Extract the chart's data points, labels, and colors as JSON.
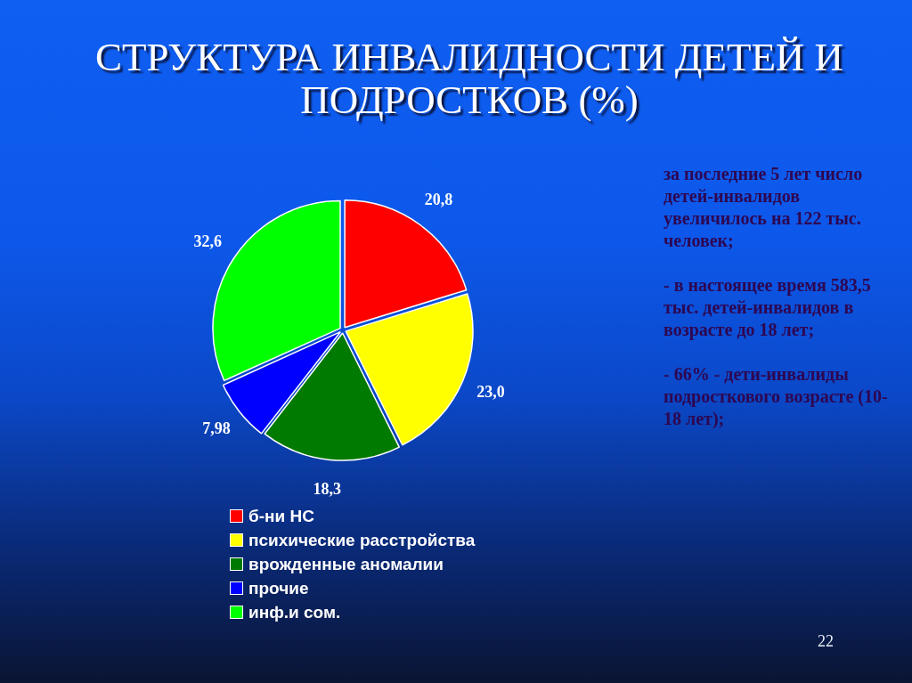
{
  "chart_data": {
    "type": "pie",
    "title": "СТРУКТУРА ИНВАЛИДНОСТИ ДЕТЕЙ И ПОДРОСТКОВ (%)",
    "categories": [
      "б-ни НС",
      "психические расстройства",
      "врожденные аномалии",
      "прочие",
      "инф.и сом."
    ],
    "values": [
      20.8,
      23.0,
      18.3,
      7.98,
      32.6
    ],
    "value_labels": [
      "20,8",
      "23,0",
      "18,3",
      "7,98",
      "32,6"
    ],
    "colors": [
      "#ff0000",
      "#ffff00",
      "#007a00",
      "#0000ff",
      "#00ff00"
    ],
    "legend": "bottom",
    "annotations": [
      "за последние 5 лет число детей-инвалидов увеличилось на 122 тыс. человек;",
      "- в настоящее время 583,5 тыс. детей-инвалидов в возрасте до 18 лет;",
      "- 66% - дети-инвалиды подросткового возрасте (10-18 лет);",
      "22"
    ]
  }
}
